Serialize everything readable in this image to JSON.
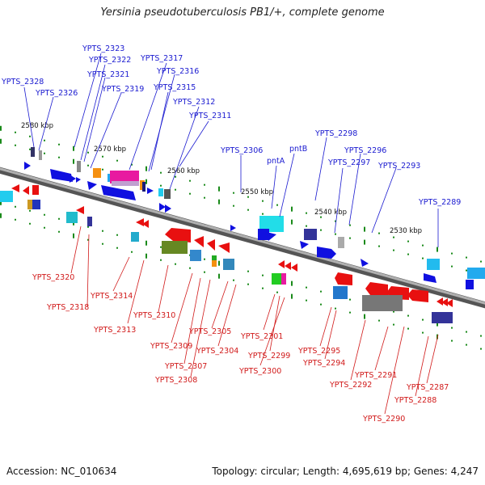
{
  "title": "Yersinia pseudotuberculosis PB1/+, complete genome",
  "footer": {
    "accession": "Accession: NC_010634",
    "summary": "Topology: circular; Length: 4,695,619 bp; Genes: 4,247"
  },
  "colors": {
    "forward_label": "#1a1ad0",
    "reverse_label": "#d11a1a",
    "backbone": "#8a8a8a",
    "tick": "#1a8a1a"
  },
  "scale_labels": [
    "2580 kbp",
    "2570 kbp",
    "2560 kbp",
    "2550 kbp",
    "2540 kbp",
    "2530 kbp"
  ],
  "top_genes": [
    "YPTS_2323",
    "YPTS_2322",
    "YPTS_2321",
    "YPTS_2317",
    "YPTS_2316",
    "YPTS_2328",
    "YPTS_2326",
    "YPTS_2319",
    "YPTS_2315",
    "YPTS_2312",
    "YPTS_2311",
    "YPTS_2298",
    "YPTS_2306",
    "pntA",
    "pntB",
    "YPTS_2296",
    "YPTS_2297",
    "YPTS_2293",
    "YPTS_2289"
  ],
  "bottom_genes": [
    "YPTS_2320",
    "YPTS_2318",
    "YPTS_2314",
    "YPTS_2313",
    "YPTS_2310",
    "YPTS_2309",
    "YPTS_2307",
    "YPTS_2308",
    "YPTS_2305",
    "YPTS_2304",
    "YPTS_2301",
    "YPTS_2299",
    "YPTS_2300",
    "YPTS_2295",
    "YPTS_2294",
    "YPTS_2291",
    "YPTS_2292",
    "YPTS_2290",
    "YPTS_2287",
    "YPTS_2288"
  ]
}
